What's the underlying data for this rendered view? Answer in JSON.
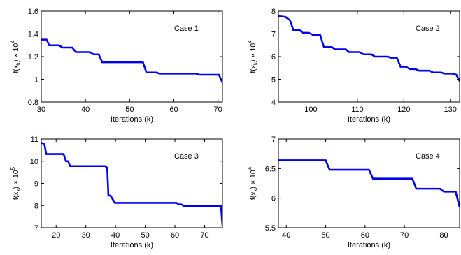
{
  "chart_data": [
    {
      "type": "line",
      "annotation": "Case 1",
      "xlabel": "Iterations (k)",
      "ylabel": {
        "base": "f(x",
        "sub": "k",
        "mid": ") × 10",
        "sup": "4"
      },
      "xlim": [
        30,
        71
      ],
      "ylim": [
        0.8,
        1.6
      ],
      "xticks": [
        30,
        40,
        50,
        60,
        70
      ],
      "yticks": [
        0.8,
        1,
        1.2,
        1.4,
        1.6
      ],
      "xtick_labels": [
        "30",
        "40",
        "50",
        "60",
        "70"
      ],
      "ytick_labels": [
        "0.8",
        "1",
        "1.2",
        "1.4",
        "1.6"
      ],
      "color": "#0000ee",
      "series": [
        {
          "x": [
            30,
            31.2,
            31.8,
            34,
            34.8,
            37,
            37.8,
            41,
            41.8,
            43,
            43.8,
            53,
            53.8,
            56,
            56.8,
            65,
            65.8,
            70.2,
            71
          ],
          "y": [
            1.35,
            1.35,
            1.3,
            1.3,
            1.28,
            1.28,
            1.24,
            1.24,
            1.22,
            1.22,
            1.15,
            1.15,
            1.06,
            1.06,
            1.05,
            1.05,
            1.04,
            1.04,
            0.97
          ]
        }
      ]
    },
    {
      "type": "line",
      "annotation": "Case 2",
      "xlabel": "Iterations (k)",
      "ylabel": {
        "base": "f(x",
        "sub": "k",
        "mid": ") × 10",
        "sup": "4"
      },
      "xlim": [
        93,
        132
      ],
      "ylim": [
        4,
        8
      ],
      "xticks": [
        100,
        110,
        120,
        130
      ],
      "yticks": [
        4,
        5,
        6,
        7,
        8
      ],
      "xtick_labels": [
        "100",
        "110",
        "120",
        "130"
      ],
      "ytick_labels": [
        "4",
        "5",
        "6",
        "7",
        "8"
      ],
      "color": "#0000ee",
      "series": [
        {
          "x": [
            93,
            94.5,
            95.5,
            96.2,
            97.5,
            98.2,
            99.5,
            100.5,
            102,
            102.8,
            104.5,
            105.2,
            107.5,
            108.2,
            110.5,
            111.3,
            113,
            113.8,
            116.5,
            117.2,
            118.5,
            119.3,
            120.5,
            121.3,
            122.5,
            123.3,
            125.5,
            126.3,
            128,
            128.8,
            130.5,
            131.3,
            132
          ],
          "y": [
            7.78,
            7.75,
            7.6,
            7.18,
            7.18,
            7.05,
            7.05,
            6.95,
            6.95,
            6.42,
            6.42,
            6.32,
            6.32,
            6.2,
            6.2,
            6.1,
            6.1,
            6.0,
            6.0,
            5.95,
            5.95,
            5.55,
            5.55,
            5.45,
            5.45,
            5.38,
            5.38,
            5.3,
            5.3,
            5.25,
            5.25,
            5.2,
            4.92
          ]
        }
      ]
    },
    {
      "type": "line",
      "annotation": "Case 3",
      "xlabel": "Iterations (k)",
      "ylabel": {
        "base": "f(x",
        "sub": "k",
        "mid": ") × 10",
        "sup": "5"
      },
      "xlim": [
        15,
        76
      ],
      "ylim": [
        7,
        11
      ],
      "xticks": [
        20,
        30,
        40,
        50,
        60,
        70
      ],
      "yticks": [
        7,
        8,
        9,
        10,
        11
      ],
      "xtick_labels": [
        "20",
        "30",
        "40",
        "50",
        "60",
        "70"
      ],
      "ytick_labels": [
        "7",
        "8",
        "9",
        "10",
        "11"
      ],
      "color": "#0000ee",
      "series": [
        {
          "x": [
            15,
            16,
            16.7,
            22.5,
            23.3,
            24,
            24.7,
            36.5,
            37.2,
            37.6,
            38.3,
            39.8,
            60.5,
            61.3,
            62.2,
            63,
            75.5,
            76
          ],
          "y": [
            10.82,
            10.8,
            10.32,
            10.32,
            10.0,
            10.0,
            9.78,
            9.78,
            9.7,
            8.45,
            8.45,
            8.12,
            8.12,
            8.05,
            8.05,
            7.98,
            7.98,
            7.1
          ]
        }
      ]
    },
    {
      "type": "line",
      "annotation": "Case 4",
      "xlabel": "Iterations (k)",
      "ylabel": {
        "base": "f(x",
        "sub": "k",
        "mid": ") × 10",
        "sup": "4"
      },
      "xlim": [
        38,
        84
      ],
      "ylim": [
        5.5,
        7
      ],
      "xticks": [
        40,
        50,
        60,
        70,
        80
      ],
      "yticks": [
        5.5,
        6,
        6.5,
        7
      ],
      "xtick_labels": [
        "40",
        "50",
        "60",
        "70",
        "80"
      ],
      "ytick_labels": [
        "5.5",
        "6",
        "6.5",
        "7"
      ],
      "color": "#0000ee",
      "series": [
        {
          "x": [
            38,
            50,
            51,
            61,
            62,
            72,
            73,
            79,
            80,
            83,
            84
          ],
          "y": [
            6.64,
            6.64,
            6.48,
            6.48,
            6.33,
            6.33,
            6.16,
            6.16,
            6.11,
            6.11,
            5.85
          ]
        }
      ]
    }
  ]
}
